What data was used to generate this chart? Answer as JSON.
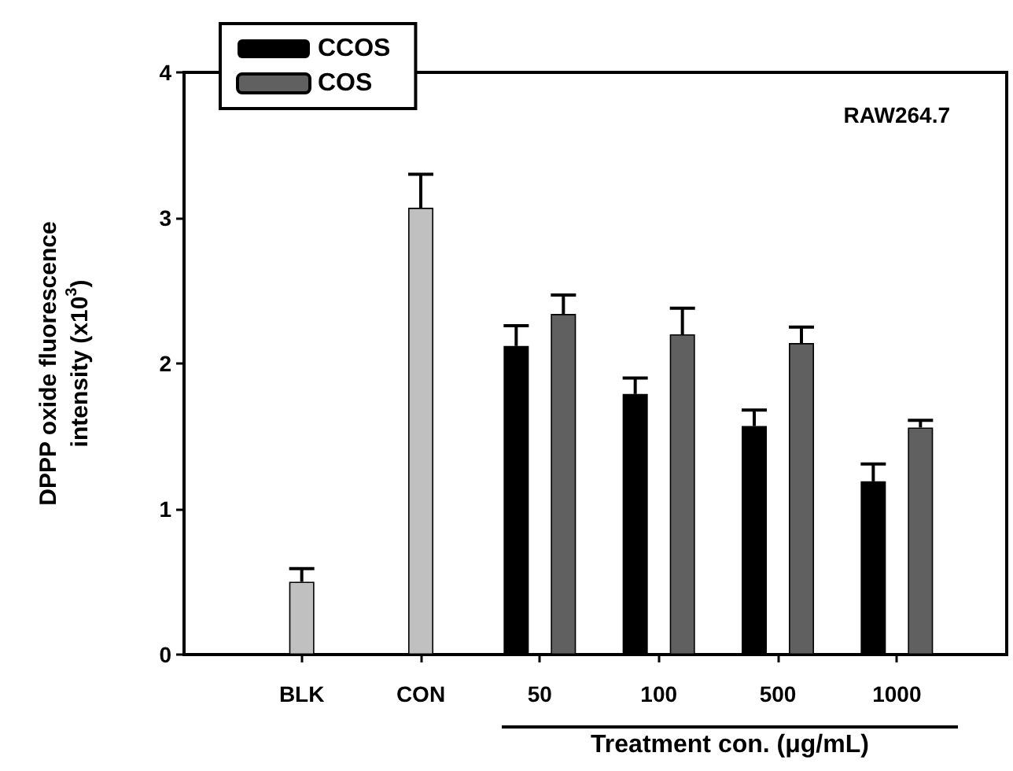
{
  "chart_data": {
    "type": "bar",
    "ylabel": "DPPP oxide fluorescence intensity (x10$^{3}$)",
    "xlabel": "Treatment con. (μg/mL)",
    "annotations": [
      "RAW264.7"
    ],
    "categories": [
      "BLK",
      "CON",
      "50",
      "100",
      "500",
      "1000"
    ],
    "series": [
      {
        "name": "CCOS",
        "color": "#000000",
        "values": [
          null,
          null,
          2.12,
          1.79,
          1.57,
          1.19
        ],
        "errors": [
          null,
          null,
          [
            2.12,
            2.26
          ],
          [
            1.79,
            1.9
          ],
          [
            1.57,
            1.68
          ],
          [
            1.19,
            1.31
          ]
        ]
      },
      {
        "name": "COS",
        "color": "#606060",
        "values": [
          null,
          null,
          2.34,
          2.2,
          2.14,
          1.56
        ],
        "errors": [
          null,
          null,
          [
            2.34,
            2.47
          ],
          [
            2.2,
            2.38
          ],
          [
            2.14,
            2.25
          ],
          [
            1.56,
            1.61
          ]
        ]
      },
      {
        "color": "#c0c0c0",
        "values": [
          0.5,
          3.07,
          null,
          null,
          null,
          null
        ],
        "errors": [
          [
            0.5,
            0.59
          ],
          [
            3.07,
            3.3
          ],
          null,
          null,
          null,
          null
        ]
      }
    ],
    "ylim": [
      0,
      4
    ],
    "yticks": [
      0,
      1,
      2,
      3,
      4
    ],
    "grid": false,
    "legend": "top left"
  }
}
